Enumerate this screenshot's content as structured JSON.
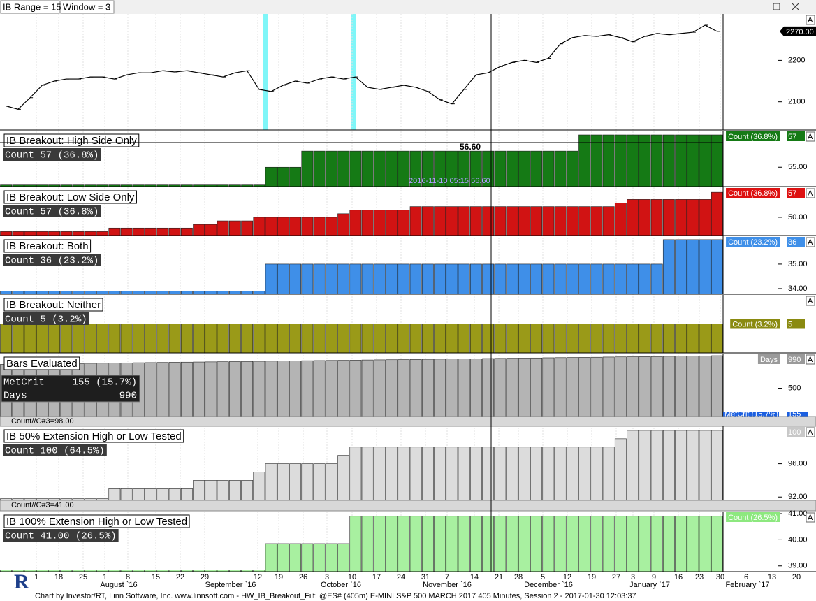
{
  "toolbar": {
    "ib_range": "IB Range = 15",
    "window": "Window = 3"
  },
  "autoscale_button": "A",
  "logo": "R",
  "footer": "Chart by Investor/RT, Linn Software, Inc. www.linnsoft.com - HW_IB_Breakout_Filt: @ES# (405m) E-MINI S&P 500 MARCH 2017 405 Minutes, Session 2 - 2017-01-30 12:03:37",
  "x_axis": {
    "day_labels": [
      "1",
      "18",
      "25",
      "1",
      "8",
      "15",
      "22",
      "29",
      "12",
      "19",
      "26",
      "3",
      "10",
      "17",
      "24",
      "31",
      "7",
      "14",
      "21",
      "28",
      "5",
      "12",
      "19",
      "27",
      "3",
      "9",
      "16",
      "23",
      "30",
      "6",
      "13",
      "20"
    ],
    "month_labels": [
      "August `16",
      "September `16",
      "October `16",
      "November `16",
      "December `16",
      "January `17",
      "February `17"
    ]
  },
  "chart_data": [
    {
      "type": "line",
      "color": "#000000",
      "ylim": [
        2032,
        2312
      ],
      "yticks": [
        2200,
        2100
      ],
      "last_price": {
        "value": 2270,
        "label": "2270.00"
      },
      "values": [
        2090,
        2082,
        2110,
        2140,
        2150,
        2155,
        2155,
        2160,
        2160,
        2155,
        2165,
        2170,
        2170,
        2175,
        2172,
        2175,
        2170,
        2165,
        2160,
        2170,
        2175,
        2130,
        2125,
        2140,
        2150,
        2145,
        2155,
        2160,
        2155,
        2160,
        2135,
        2130,
        2135,
        2140,
        2135,
        2125,
        2105,
        2095,
        2130,
        2165,
        2170,
        2185,
        2195,
        2200,
        2195,
        2205,
        2240,
        2255,
        2260,
        2258,
        2262,
        2255,
        2245,
        2258,
        2265,
        2262,
        2265,
        2268,
        2285,
        2270
      ]
    },
    {
      "type": "bar",
      "title": "IB Breakout: High Side Only",
      "legend": "Count   57 (36.8%)",
      "tag_label": "Count (36.8%)",
      "tag_value": "57",
      "color": "#157a15",
      "tag_color": "#157a15",
      "cursor": {
        "value_label": "56.60",
        "timestamp": "2016-11-10 05:15 56.60"
      },
      "ylim": [
        53.8,
        57.26
      ],
      "yticks": [
        {
          "value": 55,
          "label": "55.00"
        }
      ],
      "values": [
        53.9,
        53.9,
        53.9,
        53.9,
        53.9,
        53.9,
        53.9,
        53.9,
        53.9,
        53.9,
        53.9,
        53.9,
        53.9,
        53.9,
        53.9,
        53.9,
        53.9,
        53.9,
        53.9,
        53.9,
        53.9,
        53.9,
        55,
        55,
        55,
        56,
        56,
        56,
        56,
        56,
        56,
        56,
        56,
        56,
        56,
        56,
        56,
        56,
        56,
        56,
        56,
        56,
        56,
        56,
        56,
        56,
        56,
        56,
        57,
        57,
        57,
        57,
        57,
        57,
        57,
        57,
        57,
        57,
        57,
        57
      ]
    },
    {
      "type": "bar",
      "title": "IB Breakout: Low Side Only",
      "legend": "Count   57 (36.8%)",
      "tag_label": "Count (36.8%)",
      "tag_value": "57",
      "color": "#d11313",
      "tag_color": "#dd1111",
      "ylim": [
        44.9,
        58.4
      ],
      "yticks": [
        {
          "value": 50,
          "label": "50.00"
        }
      ],
      "values": [
        46,
        46,
        46,
        46,
        46,
        46,
        46,
        46,
        46,
        47,
        47,
        47,
        47,
        47,
        47,
        47,
        48,
        48,
        49,
        49,
        49,
        50,
        50,
        50,
        50,
        50,
        50,
        50,
        51,
        52,
        52,
        52,
        52,
        52,
        53,
        53,
        53,
        53,
        53,
        53,
        53,
        53,
        53,
        53,
        53,
        53,
        53,
        53,
        53,
        53,
        53,
        54,
        55,
        55,
        55,
        55,
        55,
        55,
        55,
        57
      ]
    },
    {
      "type": "bar",
      "title": "IB Breakout: Both",
      "legend": "Count   36 (23.2%)",
      "tag_label": "Count (23.2%)",
      "tag_value": "36",
      "color": "#3f8fe8",
      "tag_color": "#3f8fe8",
      "ylim": [
        33.77,
        36.14
      ],
      "yticks": [
        {
          "value": 35,
          "label": "35.00"
        },
        {
          "value": 34,
          "label": "34.00"
        }
      ],
      "values": [
        33.9,
        33.9,
        33.9,
        33.9,
        33.9,
        33.9,
        33.9,
        33.9,
        33.9,
        33.9,
        33.9,
        33.9,
        33.9,
        33.9,
        33.9,
        33.9,
        33.9,
        33.9,
        33.9,
        33.9,
        33.9,
        33.9,
        35,
        35,
        35,
        35,
        35,
        35,
        35,
        35,
        35,
        35,
        35,
        35,
        35,
        35,
        35,
        35,
        35,
        35,
        35,
        35,
        35,
        35,
        35,
        35,
        35,
        35,
        35,
        35,
        35,
        35,
        35,
        35,
        35,
        36,
        36,
        36,
        36,
        36
      ]
    },
    {
      "type": "bar",
      "title": "IB Breakout: Neither",
      "legend": "Count    5 (3.2%)",
      "tag_label": "Count (3.2%)",
      "tag_value": "5",
      "color": "#9a9a18",
      "tag_color": "#8a8a10",
      "ylim": [
        4,
        6
      ],
      "yticks": [],
      "values": [
        5,
        5,
        5,
        5,
        5,
        5,
        5,
        5,
        5,
        5,
        5,
        5,
        5,
        5,
        5,
        5,
        5,
        5,
        5,
        5,
        5,
        5,
        5,
        5,
        5,
        5,
        5,
        5,
        5,
        5,
        5,
        5,
        5,
        5,
        5,
        5,
        5,
        5,
        5,
        5,
        5,
        5,
        5,
        5,
        5,
        5,
        5,
        5,
        5,
        5,
        5,
        5,
        5,
        5,
        5,
        5,
        5,
        5,
        5,
        5
      ]
    },
    {
      "type": "bar",
      "title": "Bars Evaluated",
      "legend_rows": [
        [
          "MetCrit",
          "155 (15.7%)"
        ],
        [
          "Days",
          "990"
        ]
      ],
      "tag_label": "Days",
      "tag_value": "990",
      "tag2_label": "MetCrit (15.7%)",
      "tag2_value": "155",
      "status": "Count//C#3=98.00",
      "color": "#b4b4b4",
      "tag_color": "#9a9a9a",
      "ylim": [
        74,
        1022
      ],
      "yticks": [
        500
      ],
      "values": [
        860,
        862,
        865,
        867,
        869,
        871,
        873,
        875,
        877,
        880,
        882,
        884,
        886,
        888,
        891,
        893,
        895,
        897,
        899,
        901,
        904,
        906,
        908,
        910,
        912,
        915,
        917,
        919,
        921,
        923,
        926,
        928,
        930,
        932,
        934,
        937,
        939,
        941,
        943,
        945,
        948,
        950,
        952,
        954,
        956,
        959,
        961,
        963,
        965,
        967,
        970,
        972,
        974,
        976,
        978,
        981,
        983,
        985,
        987,
        990
      ]
    },
    {
      "type": "bar",
      "title": "IB 50% Extension High or Low Tested",
      "legend": "Count 100 (64.5%)",
      "tag_value": "100",
      "status": "Count//C#3=41.00",
      "color": "#dcdcdc",
      "tag_color": "#c8c8c8",
      "ylim": [
        91.6,
        100.5
      ],
      "yticks": [
        {
          "value": 96,
          "label": "96.00"
        },
        {
          "value": 92,
          "label": "92.00"
        }
      ],
      "values": [
        91.8,
        91.8,
        91.8,
        91.8,
        91.8,
        91.8,
        91.8,
        91.8,
        91.8,
        93,
        93,
        93,
        93,
        93,
        93,
        93,
        94,
        94,
        94,
        94,
        94,
        95,
        96,
        96,
        96,
        96,
        96,
        96,
        97,
        98,
        98,
        98,
        98,
        98,
        98,
        98,
        98,
        98,
        98,
        98,
        98,
        98,
        98,
        98,
        98,
        98,
        98,
        98,
        98,
        98,
        98,
        99,
        100,
        100,
        100,
        100,
        100,
        100,
        100,
        100
      ]
    },
    {
      "type": "bar",
      "title": "IB 100% Extension High or Low Tested",
      "legend": "Count     41.00 (26.5%)",
      "tag_label": "Count (26.5%)",
      "color": "#a8f0a0",
      "tag_color": "#8de87f",
      "ylim": [
        38.78,
        41.08
      ],
      "yticks": [
        {
          "value": 41,
          "label": "41.00"
        },
        {
          "value": 40,
          "label": "40.00"
        },
        {
          "value": 39,
          "label": "39.00"
        }
      ],
      "values": [
        38.85,
        38.85,
        38.85,
        38.85,
        38.85,
        38.85,
        38.85,
        38.85,
        38.85,
        38.85,
        38.85,
        38.85,
        38.85,
        38.85,
        38.85,
        38.85,
        38.85,
        38.85,
        38.85,
        38.85,
        38.85,
        38.85,
        39.85,
        39.85,
        39.85,
        39.85,
        39.85,
        39.85,
        39.85,
        40.9,
        40.9,
        40.9,
        40.9,
        40.9,
        40.9,
        40.9,
        40.9,
        40.9,
        40.9,
        40.9,
        40.9,
        40.9,
        40.9,
        40.9,
        40.9,
        40.9,
        40.9,
        40.9,
        40.9,
        40.9,
        40.9,
        40.9,
        40.9,
        40.9,
        40.9,
        40.9,
        40.9,
        40.9,
        40.9,
        40.9
      ]
    }
  ]
}
